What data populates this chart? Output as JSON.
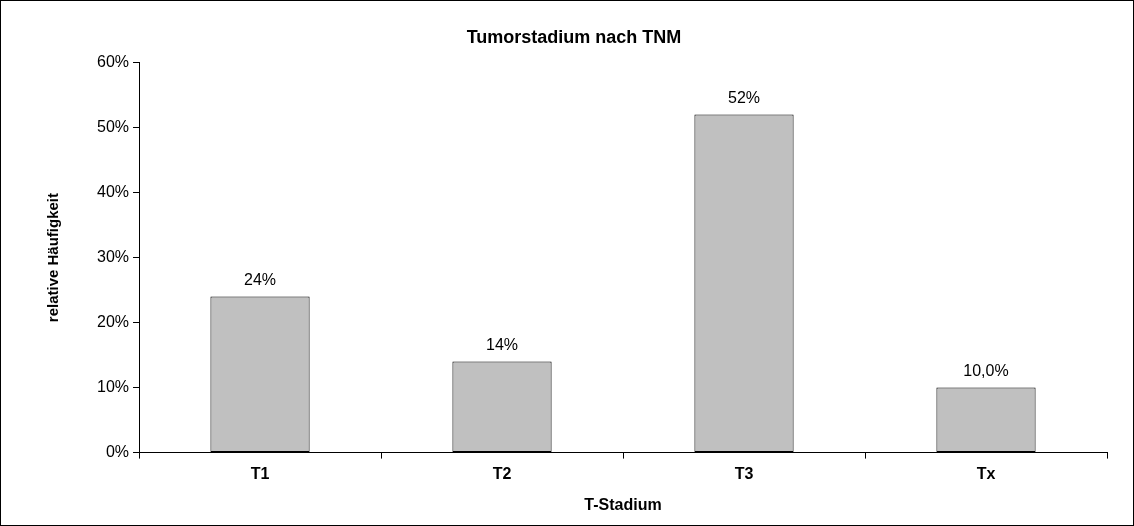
{
  "chart_data": {
    "type": "bar",
    "title": "Tumorstadium nach TNM",
    "xlabel": "T-Stadium",
    "ylabel": "relative Häufigkeit",
    "categories": [
      "T1",
      "T2",
      "T3",
      "Tx"
    ],
    "values": [
      24,
      14,
      52,
      10
    ],
    "value_labels": [
      "24%",
      "14%",
      "52%",
      "10,0%"
    ],
    "color": "#c0c0c0",
    "ylim": [
      0,
      60
    ],
    "yticks": [
      {
        "value": 0,
        "label": "0%"
      },
      {
        "value": 10,
        "label": "10%"
      },
      {
        "value": 20,
        "label": "20%"
      },
      {
        "value": 30,
        "label": "30%"
      },
      {
        "value": 40,
        "label": "40%"
      },
      {
        "value": 50,
        "label": "50%"
      },
      {
        "value": 60,
        "label": "60%"
      }
    ],
    "grid": false,
    "legend": false
  }
}
